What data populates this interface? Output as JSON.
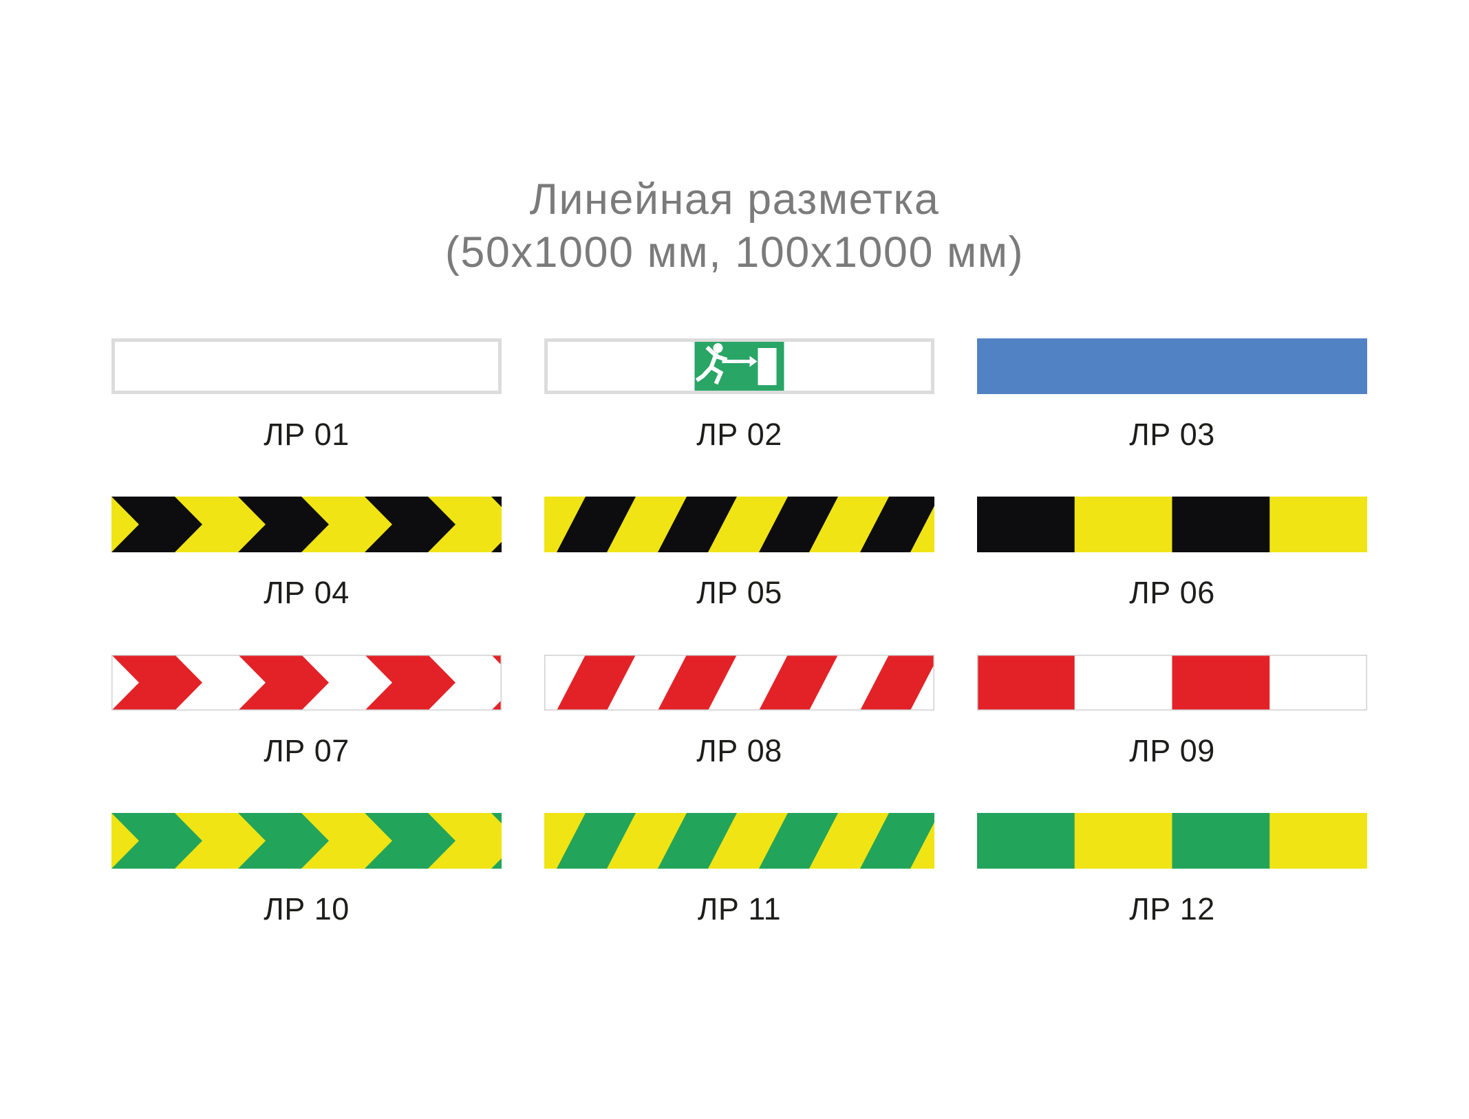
{
  "title": {
    "line1": "Линейная разметка",
    "line2": "(50x1000 мм, 100x1000 мм)"
  },
  "colors": {
    "white": "#ffffff",
    "black": "#0d0d0f",
    "yellow": "#f0e414",
    "red": "#e32227",
    "green": "#22a45b",
    "blue": "#5182c3",
    "sign_green": "#29a566",
    "border_light": "#dcdcdc",
    "hairline": "#d0d0d0",
    "title_gray": "#7b7b7b",
    "label_color": "#1d1d1b"
  },
  "tapes": [
    {
      "label": "ЛР 01",
      "pattern": "plain",
      "bg": "white",
      "fg": "white",
      "border": "thick"
    },
    {
      "label": "ЛР 02",
      "pattern": "exit-sign",
      "bg": "white",
      "fg": "sign_green",
      "border": "thick"
    },
    {
      "label": "ЛР 03",
      "pattern": "plain",
      "bg": "blue",
      "fg": "blue",
      "border": "none"
    },
    {
      "label": "ЛР 04",
      "pattern": "chevron",
      "bg": "yellow",
      "fg": "black",
      "border": "none"
    },
    {
      "label": "ЛР 05",
      "pattern": "diagonal",
      "bg": "yellow",
      "fg": "black",
      "border": "none"
    },
    {
      "label": "ЛР 06",
      "pattern": "blocks",
      "bg": "yellow",
      "fg": "black",
      "border": "none"
    },
    {
      "label": "ЛР 07",
      "pattern": "chevron",
      "bg": "white",
      "fg": "red",
      "border": "thin"
    },
    {
      "label": "ЛР 08",
      "pattern": "diagonal",
      "bg": "white",
      "fg": "red",
      "border": "thin"
    },
    {
      "label": "ЛР 09",
      "pattern": "blocks",
      "bg": "white",
      "fg": "red",
      "border": "thin"
    },
    {
      "label": "ЛР 10",
      "pattern": "chevron",
      "bg": "yellow",
      "fg": "green",
      "border": "none"
    },
    {
      "label": "ЛР 11",
      "pattern": "diagonal",
      "bg": "yellow",
      "fg": "green",
      "border": "none"
    },
    {
      "label": "ЛР 12",
      "pattern": "blocks",
      "bg": "yellow",
      "fg": "green",
      "border": "none"
    }
  ]
}
